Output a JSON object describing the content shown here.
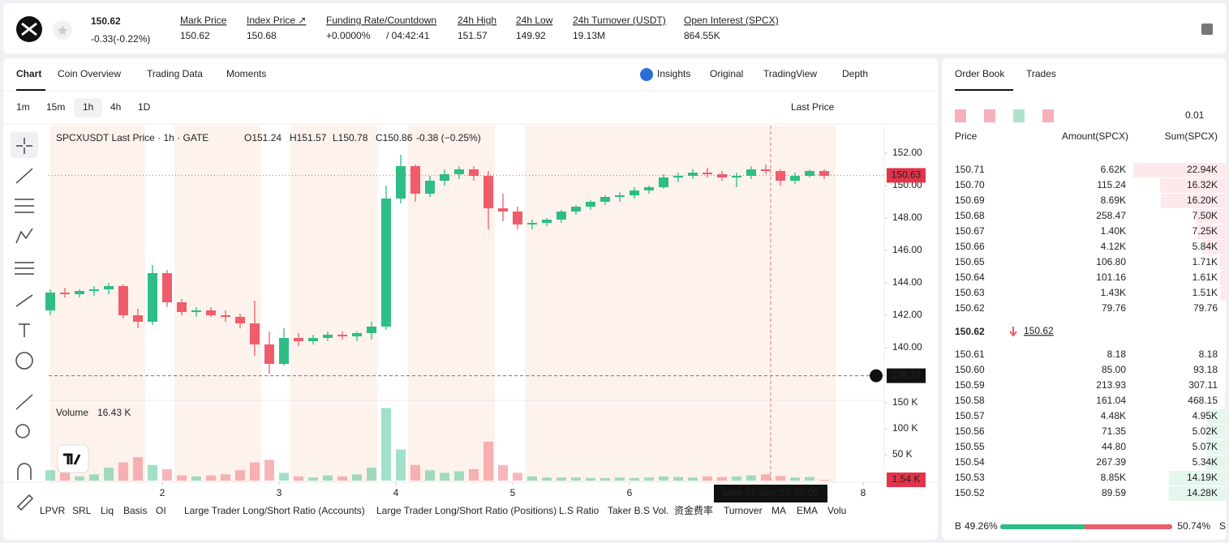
{
  "header": {
    "price": "150.62",
    "change": "-0.33(-0.22%)",
    "stats": [
      {
        "label": "Mark Price",
        "value": "150.62"
      },
      {
        "label": "Index Price ↗",
        "value": "150.68"
      },
      {
        "label": "Funding Rate/Countdown",
        "value": "+0.0000%",
        "value2": "/ 04:42:41"
      },
      {
        "label": "24h High",
        "value": "151.57"
      },
      {
        "label": "24h Low",
        "value": "149.92"
      },
      {
        "label": "24h Turnover (USDT)",
        "value": "19.13M"
      },
      {
        "label": "Open Interest (SPCX)",
        "value": "864.55K"
      }
    ]
  },
  "chart_panel": {
    "tabs": [
      "Chart",
      "Coin Overview",
      "Trading Data",
      "Moments"
    ],
    "view_tabs": [
      "Insights",
      "Original",
      "TradingView",
      "Depth"
    ],
    "intervals": [
      "1m",
      "15m",
      "1h",
      "4h",
      "1D"
    ],
    "price_type": "Last Price",
    "indicators": [
      "LPVR",
      "SRL",
      "Liq",
      "Basis",
      "OI",
      "Large Trader Long/Short Ratio (Accounts)",
      "Large Trader Long/Short Ratio (Positions)",
      "L.S Ratio",
      "Taker B.S Vol.",
      "资金费率",
      "Turnover",
      "MA",
      "EMA",
      "Volu"
    ]
  },
  "chart_data": {
    "type": "candlestick",
    "title": "SPCXUSDT Last Price · 1h · GATE",
    "ohlc": [
      "O151.24",
      "H151.57",
      "L150.78",
      "C150.86",
      "-0.38 (−0.25%)"
    ],
    "up_color": "#2ebd85",
    "down_color": "#ef5d6b",
    "candles": {
      "x": [
        1.0417,
        1.1667,
        1.2917,
        1.4167,
        1.5417,
        1.6667,
        1.7917,
        1.9167,
        2.0417,
        2.1667,
        2.2917,
        2.4167,
        2.5417,
        2.6667,
        2.7917,
        2.9167,
        3.0417,
        3.1667,
        3.2917,
        3.4167,
        3.5417,
        3.6667,
        3.7917,
        3.9167,
        4.0417,
        4.1667,
        4.2917,
        4.4167,
        4.5417,
        4.6667,
        4.7917,
        4.9167,
        5.0417,
        5.1667,
        5.2917,
        5.4167,
        5.5417,
        5.6667,
        5.7917,
        5.9167,
        6.0417,
        6.1667,
        6.2917,
        6.4167,
        6.5417,
        6.6667,
        6.7917,
        6.9167,
        7.0417,
        7.1667,
        7.2917,
        7.4167,
        7.5417,
        7.6667
      ],
      "open": [
        142.3,
        143.4,
        143.3,
        143.5,
        143.6,
        143.8,
        142.0,
        141.6,
        144.6,
        142.8,
        142.2,
        142.3,
        142.0,
        141.9,
        141.5,
        140.2,
        139.0,
        140.6,
        140.4,
        140.6,
        140.8,
        140.7,
        140.9,
        141.3,
        149.2,
        151.2,
        149.5,
        150.3,
        150.7,
        151.0,
        150.6,
        148.6,
        148.4,
        147.6,
        147.7,
        147.9,
        148.4,
        148.7,
        149.0,
        149.3,
        149.4,
        149.7,
        149.9,
        150.5,
        150.6,
        150.8,
        150.7,
        150.5,
        150.6,
        151.0,
        150.9,
        150.3,
        150.6,
        150.9
      ],
      "high": [
        143.6,
        143.7,
        143.6,
        143.8,
        144.0,
        143.9,
        142.4,
        145.1,
        144.8,
        143.0,
        142.5,
        142.5,
        142.3,
        142.1,
        142.9,
        141.0,
        141.2,
        140.9,
        140.8,
        141.0,
        141.0,
        141.0,
        141.6,
        150.0,
        151.9,
        151.3,
        150.6,
        151.0,
        151.2,
        151.2,
        150.9,
        149.5,
        148.7,
        147.9,
        148.0,
        148.5,
        148.8,
        149.1,
        149.4,
        149.6,
        149.9,
        150.0,
        150.7,
        150.8,
        151.0,
        151.1,
        150.9,
        150.8,
        151.2,
        151.3,
        151.0,
        150.8,
        151.0,
        151.0
      ],
      "low": [
        142.0,
        143.1,
        143.1,
        143.2,
        143.3,
        141.8,
        141.2,
        141.4,
        142.5,
        142.0,
        141.9,
        141.9,
        141.6,
        141.2,
        139.5,
        138.4,
        138.9,
        140.1,
        140.2,
        140.4,
        140.5,
        140.4,
        140.5,
        141.1,
        148.9,
        149.0,
        149.3,
        150.0,
        150.4,
        150.3,
        147.3,
        147.8,
        147.3,
        147.3,
        147.5,
        147.7,
        148.2,
        148.5,
        148.8,
        149.0,
        149.2,
        149.5,
        149.8,
        150.2,
        150.4,
        150.5,
        150.3,
        149.9,
        150.4,
        150.7,
        150.0,
        150.1,
        150.5,
        150.4
      ],
      "close": [
        143.4,
        143.3,
        143.5,
        143.6,
        143.8,
        142.0,
        141.6,
        144.6,
        142.8,
        142.2,
        142.3,
        142.0,
        141.9,
        141.5,
        140.2,
        139.0,
        140.6,
        140.4,
        140.6,
        140.8,
        140.7,
        140.9,
        141.3,
        149.2,
        151.2,
        149.5,
        150.3,
        150.7,
        151.0,
        150.6,
        148.6,
        148.4,
        147.6,
        147.7,
        147.9,
        148.4,
        148.7,
        149.0,
        149.3,
        149.4,
        149.7,
        149.9,
        150.5,
        150.6,
        150.8,
        150.7,
        150.5,
        150.6,
        151.0,
        150.9,
        150.3,
        150.6,
        150.9,
        150.6
      ],
      "volume": [
        20000,
        15000,
        8000,
        12000,
        25000,
        35000,
        45000,
        30000,
        22000,
        10000,
        8000,
        10000,
        12000,
        20000,
        35000,
        40000,
        15000,
        8000,
        6000,
        10000,
        8000,
        12000,
        25000,
        140000,
        60000,
        30000,
        20000,
        15000,
        18000,
        22000,
        75000,
        30000,
        15000,
        8000,
        6000,
        6000,
        6000,
        5000,
        5000,
        6000,
        5000,
        6000,
        8000,
        7000,
        6000,
        8000,
        7000,
        8000,
        10000,
        12000,
        9000,
        6000,
        7000,
        1540
      ]
    },
    "ylim": [
      136.8,
      153.7
    ],
    "yticks": [
      {
        "value": 140,
        "label": "140.00"
      },
      {
        "value": 142,
        "label": "142.00"
      },
      {
        "value": 144,
        "label": "144.00"
      },
      {
        "value": 146,
        "label": "146.00"
      },
      {
        "value": 148,
        "label": "148.00"
      },
      {
        "value": 150,
        "label": "150.00"
      },
      {
        "value": 152,
        "label": "152.00"
      }
    ],
    "xlim": [
      1.0278,
      8.1806
    ],
    "xticks": [
      2,
      3,
      4,
      5,
      6,
      8
    ],
    "volume_ylim": [
      0,
      150000
    ],
    "volume_ticks": [
      {
        "value": 50000,
        "label": "50 K"
      },
      {
        "value": 100000,
        "label": "100 K"
      },
      {
        "value": 150000,
        "label": "150 K"
      }
    ],
    "volume_label": "Volume",
    "volume_value": "16.43 K",
    "last_volume_label": "1.54 K",
    "last_price": 150.63,
    "crosshair": {
      "x": 7.2083,
      "price": 138.27,
      "time_label": "Mon 07 Sep '26  05:00"
    }
  },
  "order_book": {
    "tabs": [
      "Order Book",
      "Trades"
    ],
    "tick": "0.01",
    "headers": [
      "Price",
      "Amount(SPCX)",
      "Sum(SPCX)"
    ],
    "asks": [
      {
        "price": "150.71",
        "amount": "6.62K",
        "sum": {
          "value": 22940,
          "label": "22.94K"
        }
      },
      {
        "price": "150.70",
        "amount": "115.24",
        "sum": {
          "value": 16320,
          "label": "16.32K"
        }
      },
      {
        "price": "150.69",
        "amount": "8.69K",
        "sum": {
          "value": 16200,
          "label": "16.20K"
        }
      },
      {
        "price": "150.68",
        "amount": "258.47",
        "sum": {
          "value": 7500,
          "label": "7.50K"
        }
      },
      {
        "price": "150.67",
        "amount": "1.40K",
        "sum": {
          "value": 7250,
          "label": "7.25K"
        }
      },
      {
        "price": "150.66",
        "amount": "4.12K",
        "sum": {
          "value": 5840,
          "label": "5.84K"
        }
      },
      {
        "price": "150.65",
        "amount": "106.80",
        "sum": {
          "value": 1710,
          "label": "1.71K"
        }
      },
      {
        "price": "150.64",
        "amount": "101.16",
        "sum": {
          "value": 1610,
          "label": "1.61K"
        }
      },
      {
        "price": "150.63",
        "amount": "1.43K",
        "sum": {
          "value": 1510,
          "label": "1.51K"
        }
      },
      {
        "price": "150.62",
        "amount": "79.76",
        "sum": 79.76
      }
    ],
    "mid_price": "150.62",
    "mid_mark": "150.62",
    "bids": [
      {
        "price": "150.61",
        "amount": "8.18",
        "sum": 8.18
      },
      {
        "price": "150.60",
        "amount": "85.00",
        "sum": 93.18
      },
      {
        "price": "150.59",
        "amount": "213.93",
        "sum": 307.11
      },
      {
        "price": "150.58",
        "amount": "161.04",
        "sum": 468.15
      },
      {
        "price": "150.57",
        "amount": "4.48K",
        "sum": {
          "value": 4950,
          "label": "4.95K"
        }
      },
      {
        "price": "150.56",
        "amount": "71.35",
        "sum": {
          "value": 5020,
          "label": "5.02K"
        }
      },
      {
        "price": "150.55",
        "amount": "44.80",
        "sum": {
          "value": 5070,
          "label": "5.07K"
        }
      },
      {
        "price": "150.54",
        "amount": "267.39",
        "sum": {
          "value": 5340,
          "label": "5.34K"
        }
      },
      {
        "price": "150.53",
        "amount": "8.85K",
        "sum": {
          "value": 14190,
          "label": "14.19K"
        }
      },
      {
        "price": "150.52",
        "amount": "89.59",
        "sum": {
          "value": 14280,
          "label": "14.28K"
        }
      }
    ],
    "ratio": {
      "buy_letter": "B",
      "sell_letter": "S",
      "buy": {
        "value": 49.26,
        "label": "49.26%"
      },
      "sell": {
        "value": 50.74,
        "label": "50.74%"
      }
    }
  }
}
